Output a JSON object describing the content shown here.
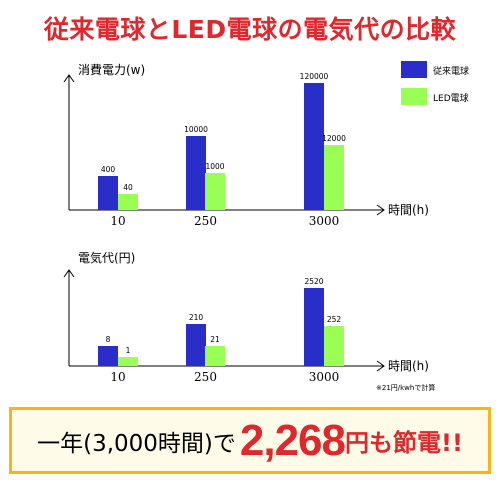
{
  "title": "従来電球とLED電球の電気代の比較",
  "colors": {
    "incandescent": "#2a2ec8",
    "led": "#99ff55",
    "accent": "#e0272c",
    "banner_border": "#f6b51e"
  },
  "legend": [
    "従来電球",
    "LED電球"
  ],
  "chart_data": [
    {
      "type": "bar",
      "ylabel": "消費電力(w)",
      "xlabel": "時間(h)",
      "categories": [
        "10",
        "250",
        "3000"
      ],
      "series": [
        {
          "name": "従来電球",
          "values": [
            400,
            10000,
            120000
          ],
          "labels": [
            "400",
            "10000",
            "120000"
          ]
        },
        {
          "name": "LED電球",
          "values": [
            40,
            1000,
            12000
          ],
          "labels": [
            "40",
            "1000",
            "12000"
          ]
        }
      ]
    },
    {
      "type": "bar",
      "ylabel": "電気代(円)",
      "xlabel": "時間(h)",
      "categories": [
        "10",
        "250",
        "3000"
      ],
      "series": [
        {
          "name": "従来電球",
          "values": [
            8,
            210,
            2520
          ],
          "labels": [
            "8",
            "210",
            "2520"
          ]
        },
        {
          "name": "LED電球",
          "values": [
            1,
            21,
            252
          ],
          "labels": [
            "1",
            "21",
            "252"
          ]
        }
      ]
    }
  ],
  "note": "※21円/kwhで計算",
  "banner": {
    "prefix": "一年(3,000時間)で",
    "amount": "2,268",
    "suffix": "円も節電!!"
  }
}
